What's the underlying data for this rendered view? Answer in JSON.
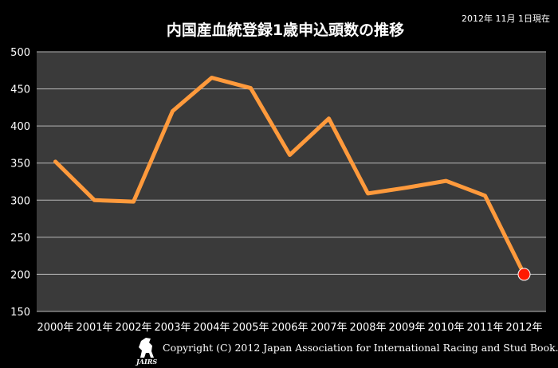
{
  "header": {
    "date": "2012年 11月 1日現在",
    "copyright": "Copyright (C) 2012 Japan Association for International Racing and Stud Book.",
    "logo_text": "JAIRS"
  },
  "colors": {
    "background": "#000000",
    "plot_area": "#3a3a3a",
    "gridline": "#b8b8b8",
    "line": "#ff9a3c",
    "highlight_marker": "#ff1a00"
  },
  "chart_data": {
    "type": "line",
    "title": "内国産血統登録1歳申込頭数の推移",
    "xlabel": "",
    "ylabel": "",
    "categories": [
      "2000年",
      "2001年",
      "2002年",
      "2003年",
      "2004年",
      "2005年",
      "2006年",
      "2007年",
      "2008年",
      "2009年",
      "2010年",
      "2011年",
      "2012年"
    ],
    "series": [
      {
        "values": [
          352,
          300,
          298,
          420,
          465,
          451,
          361,
          410,
          309,
          317,
          326,
          306,
          200
        ]
      }
    ],
    "ylim": [
      150,
      500
    ],
    "yticks": [
      150,
      200,
      250,
      300,
      350,
      400,
      450,
      500
    ],
    "grid": true,
    "legend": "none",
    "highlight_index": 12
  }
}
